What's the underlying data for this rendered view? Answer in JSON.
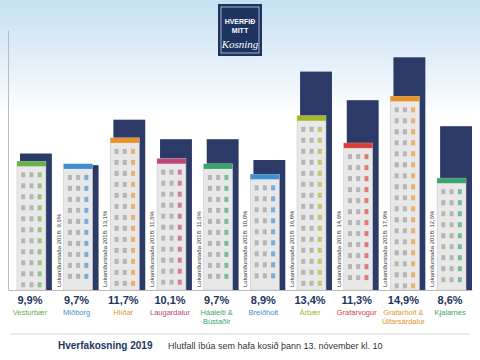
{
  "logo": [
    "HVERFIÐ",
    "MITT",
    "Kosning"
  ],
  "chart_data": {
    "type": "bar",
    "title": "Hverfakosning 2019",
    "subtitle": "Hlutfall íbúa sem hafa kosið þann 13. nóvember kl. 10",
    "categories": [
      "Vesturbær",
      "Miðborg",
      "Hlíðar",
      "Laugardalur",
      "Háaleiti & Bústaðir",
      "Breiðholt",
      "Árbær",
      "Grafarvogur",
      "Grafarholt & Úlfarsárdalur",
      "Kjalarnes"
    ],
    "values": [
      9.9,
      9.7,
      11.7,
      10.1,
      9.7,
      8.9,
      13.4,
      11.3,
      14.9,
      8.6
    ],
    "value_labels": [
      "9,9%",
      "9,7%",
      "11,7%",
      "10,1%",
      "9,7%",
      "8,9%",
      "13,4%",
      "11,3%",
      "14,9%",
      "8,6%"
    ],
    "colors": [
      "#6ab04c",
      "#3f8fd2",
      "#e8932a",
      "#c2457a",
      "#3aa56b",
      "#3f8fd2",
      "#a6b82a",
      "#d9413b",
      "#e8932a",
      "#3aa56b"
    ],
    "values_2018": [
      10.5,
      9.6,
      13.1,
      11.6,
      11.6,
      10.0,
      16.8,
      14.6,
      17.9,
      12.6
    ],
    "annotations": [
      null,
      "Lokaniðurstaða 2018: 9,6%",
      "Lokaniðurstaða 2018: 13,1%",
      "Lokaniðurstaða 2018: 11,6%",
      "Lokaniðurstaða 2018: 11,6%",
      "Lokaniðurstaða 2018: 10,0%",
      "Lokaniðurstaða 2018: 16,8%",
      "Lokaniðurstaða 2018: 14,6%",
      "Lokaniðurstaða 2018: 17,9%",
      "Lokaniðurstaða 2018: 12,6%"
    ],
    "color": "#2b3a67",
    "ylim": [
      0,
      20
    ],
    "yticks": [],
    "tick_labels": false,
    "data_labels": true,
    "grid": false
  }
}
